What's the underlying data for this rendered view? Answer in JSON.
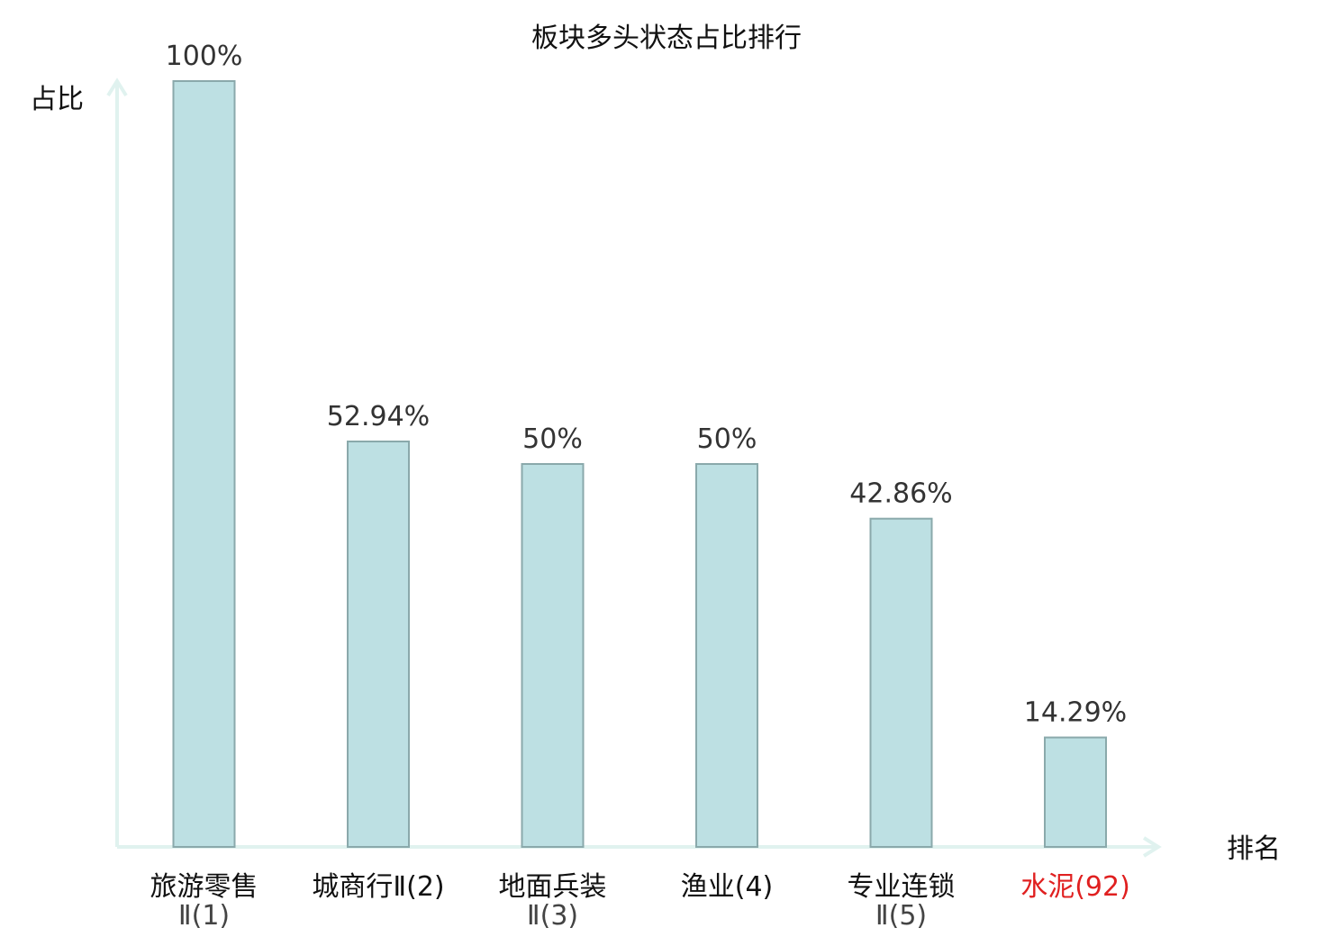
{
  "chart_data": {
    "type": "bar",
    "title": "板块多头状态占比排行",
    "ylabel": "占比",
    "xlabel": "排名",
    "ylim": [
      0,
      100
    ],
    "grid": false,
    "legend": "none",
    "categories": [
      {
        "line1": "旅游零售",
        "line2": "Ⅱ(1)",
        "highlight": false
      },
      {
        "line1": "城商行Ⅱ(2)",
        "line2": "",
        "highlight": false
      },
      {
        "line1": "地面兵装",
        "line2": "Ⅱ(3)",
        "highlight": false
      },
      {
        "line1": "渔业(4)",
        "line2": "",
        "highlight": false
      },
      {
        "line1": "专业连锁",
        "line2": "Ⅱ(5)",
        "highlight": false
      },
      {
        "line1": "水泥(92)",
        "line2": "",
        "highlight": true
      }
    ],
    "values": [
      100,
      52.94,
      50,
      50,
      42.86,
      14.29
    ],
    "value_labels": [
      "100%",
      "52.94%",
      "50%",
      "50%",
      "42.86%",
      "14.29%"
    ],
    "colors": {
      "bar_fill": "#bde0e3",
      "bar_stroke": "#8aa9ab",
      "axis": "#e0f2ef",
      "highlight_text": "#e02020"
    }
  }
}
